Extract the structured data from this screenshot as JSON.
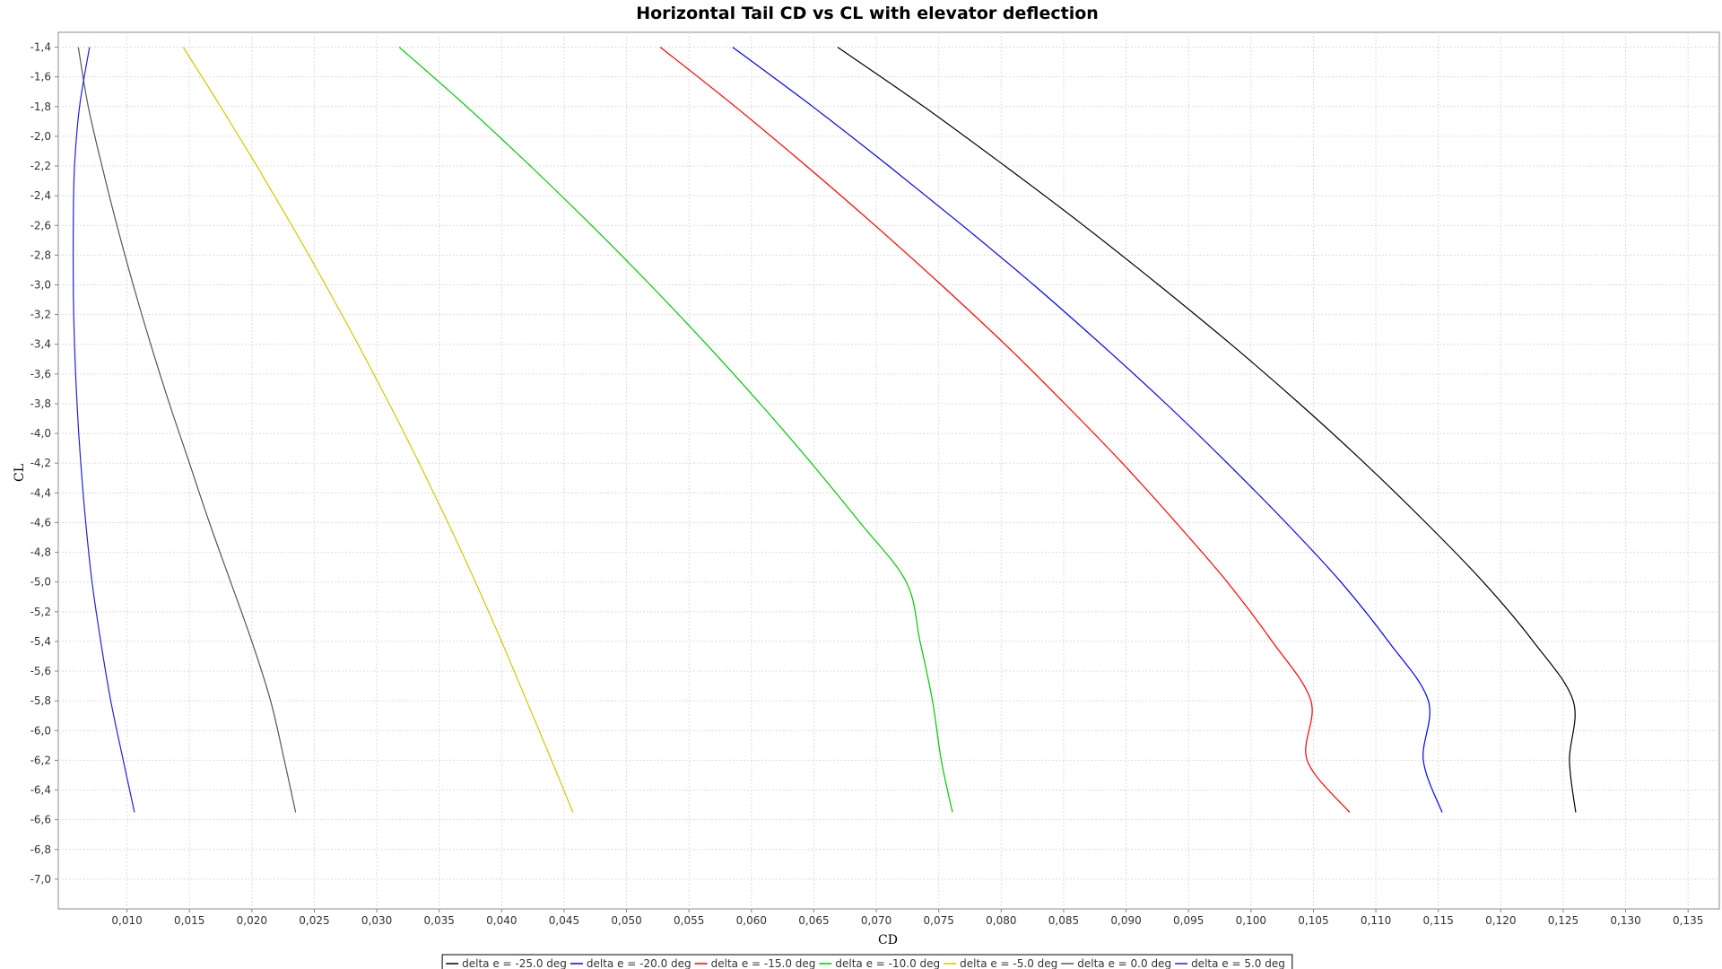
{
  "chart_data": {
    "type": "line",
    "title": "Horizontal Tail CD vs CL with elevator deflection",
    "xlabel": "CD",
    "ylabel": "CL",
    "xlim": [
      0.0045,
      0.1375
    ],
    "ylim": [
      -7.2,
      -1.3
    ],
    "xticks": [
      "0,010",
      "0,015",
      "0,020",
      "0,025",
      "0,030",
      "0,035",
      "0,040",
      "0,045",
      "0,050",
      "0,055",
      "0,060",
      "0,065",
      "0,070",
      "0,075",
      "0,080",
      "0,085",
      "0,090",
      "0,095",
      "0,100",
      "0,105",
      "0,110",
      "0,115",
      "0,120",
      "0,125",
      "0,130",
      "0,135"
    ],
    "yticks": [
      "-1,4",
      "-1,6",
      "-1,8",
      "-2,0",
      "-2,2",
      "-2,4",
      "-2,6",
      "-2,8",
      "-3,0",
      "-3,2",
      "-3,4",
      "-3,6",
      "-3,8",
      "-4,0",
      "-4,2",
      "-4,4",
      "-4,6",
      "-4,8",
      "-5,0",
      "-5,2",
      "-5,4",
      "-5,6",
      "-5,8",
      "-6,0",
      "-6,2",
      "-6,4",
      "-6,6",
      "-6,8",
      "-7,0"
    ],
    "grid": true,
    "legend_position": "bottom",
    "y": [
      -1.4,
      -1.8,
      -2.2,
      -2.6,
      -3.0,
      -3.4,
      -3.8,
      -4.2,
      -4.6,
      -5.0,
      -5.4,
      -5.8,
      -6.2,
      -6.55
    ],
    "series": [
      {
        "name": "delta e = -25.0 deg",
        "color": "#000000",
        "values": [
          0.0669,
          0.0738,
          0.0803,
          0.0866,
          0.0926,
          0.0984,
          0.1039,
          0.1091,
          0.114,
          0.1186,
          0.1226,
          0.1258,
          0.1255,
          0.126
        ]
      },
      {
        "name": "delta e = -20.0 deg",
        "color": "#0000ff",
        "values": [
          0.0585,
          0.0649,
          0.071,
          0.0769,
          0.0826,
          0.088,
          0.0932,
          0.0981,
          0.1028,
          0.1072,
          0.111,
          0.1142,
          0.1138,
          0.1153
        ]
      },
      {
        "name": "delta e = -15.0 deg",
        "color": "#ff0000",
        "values": [
          0.0527,
          0.0587,
          0.0644,
          0.0699,
          0.0752,
          0.0803,
          0.0851,
          0.0897,
          0.094,
          0.0981,
          0.1017,
          0.1048,
          0.1045,
          0.1079
        ]
      },
      {
        "name": "delta e = -10.0 deg",
        "color": "#00c800",
        "values": [
          0.0318,
          0.0372,
          0.0423,
          0.0472,
          0.0519,
          0.0564,
          0.0607,
          0.0648,
          0.0687,
          0.0724,
          0.0735,
          0.0745,
          0.0752,
          0.0761
        ]
      },
      {
        "name": "delta e = -5.0 deg",
        "color": "#d2c800",
        "values": [
          0.0145,
          0.0175,
          0.0204,
          0.0232,
          0.0259,
          0.0285,
          0.031,
          0.0334,
          0.0357,
          0.0379,
          0.04,
          0.042,
          0.044,
          0.0457
        ]
      },
      {
        "name": "delta e = 0.0 deg",
        "color": "#555555",
        "values": [
          0.0061,
          0.0069,
          0.008,
          0.0092,
          0.0105,
          0.0119,
          0.0134,
          0.015,
          0.0166,
          0.0183,
          0.02,
          0.0215,
          0.0226,
          0.0235
        ]
      },
      {
        "name": "delta e = 5.0 deg",
        "color": "#2020e0",
        "values": [
          0.007,
          0.0062,
          0.0058,
          0.0057,
          0.0057,
          0.0058,
          0.006,
          0.0063,
          0.0067,
          0.0072,
          0.0079,
          0.0087,
          0.0097,
          0.0106
        ]
      }
    ]
  }
}
